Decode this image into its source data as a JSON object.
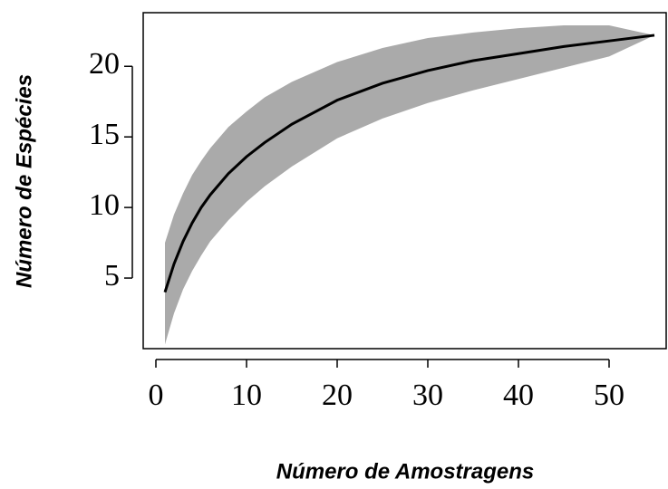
{
  "chart_data": {
    "type": "line",
    "xlabel": "Número de Amostragens",
    "ylabel": "Número de Espécies",
    "x": [
      1,
      2,
      3,
      4,
      5,
      6,
      8,
      10,
      12,
      15,
      20,
      25,
      30,
      35,
      40,
      45,
      50,
      55
    ],
    "series": [
      {
        "color": "#000000",
        "values": [
          4,
          6,
          7.6,
          8.9,
          10,
          10.9,
          12.4,
          13.6,
          14.6,
          15.9,
          17.6,
          18.8,
          19.7,
          20.4,
          20.9,
          21.4,
          21.8,
          22.2
        ]
      }
    ],
    "band": {
      "color": "#aaaaaa",
      "upper": [
        7.5,
        9.5,
        11,
        12.3,
        13.3,
        14.2,
        15.7,
        16.8,
        17.8,
        18.9,
        20.3,
        21.3,
        22,
        22.4,
        22.7,
        22.9,
        22.9,
        22.2
      ],
      "lower": [
        0.3,
        2.5,
        4.2,
        5.5,
        6.6,
        7.6,
        9.1,
        10.4,
        11.5,
        12.9,
        14.9,
        16.3,
        17.4,
        18.3,
        19.1,
        19.9,
        20.7,
        22.2
      ]
    },
    "xlim": [
      -1.4,
      56.3
    ],
    "ylim": [
      0,
      23.8
    ],
    "xticks": [
      0,
      10,
      20,
      30,
      40,
      50
    ],
    "yticks": [
      5,
      10,
      15,
      20
    ],
    "grid": false
  }
}
